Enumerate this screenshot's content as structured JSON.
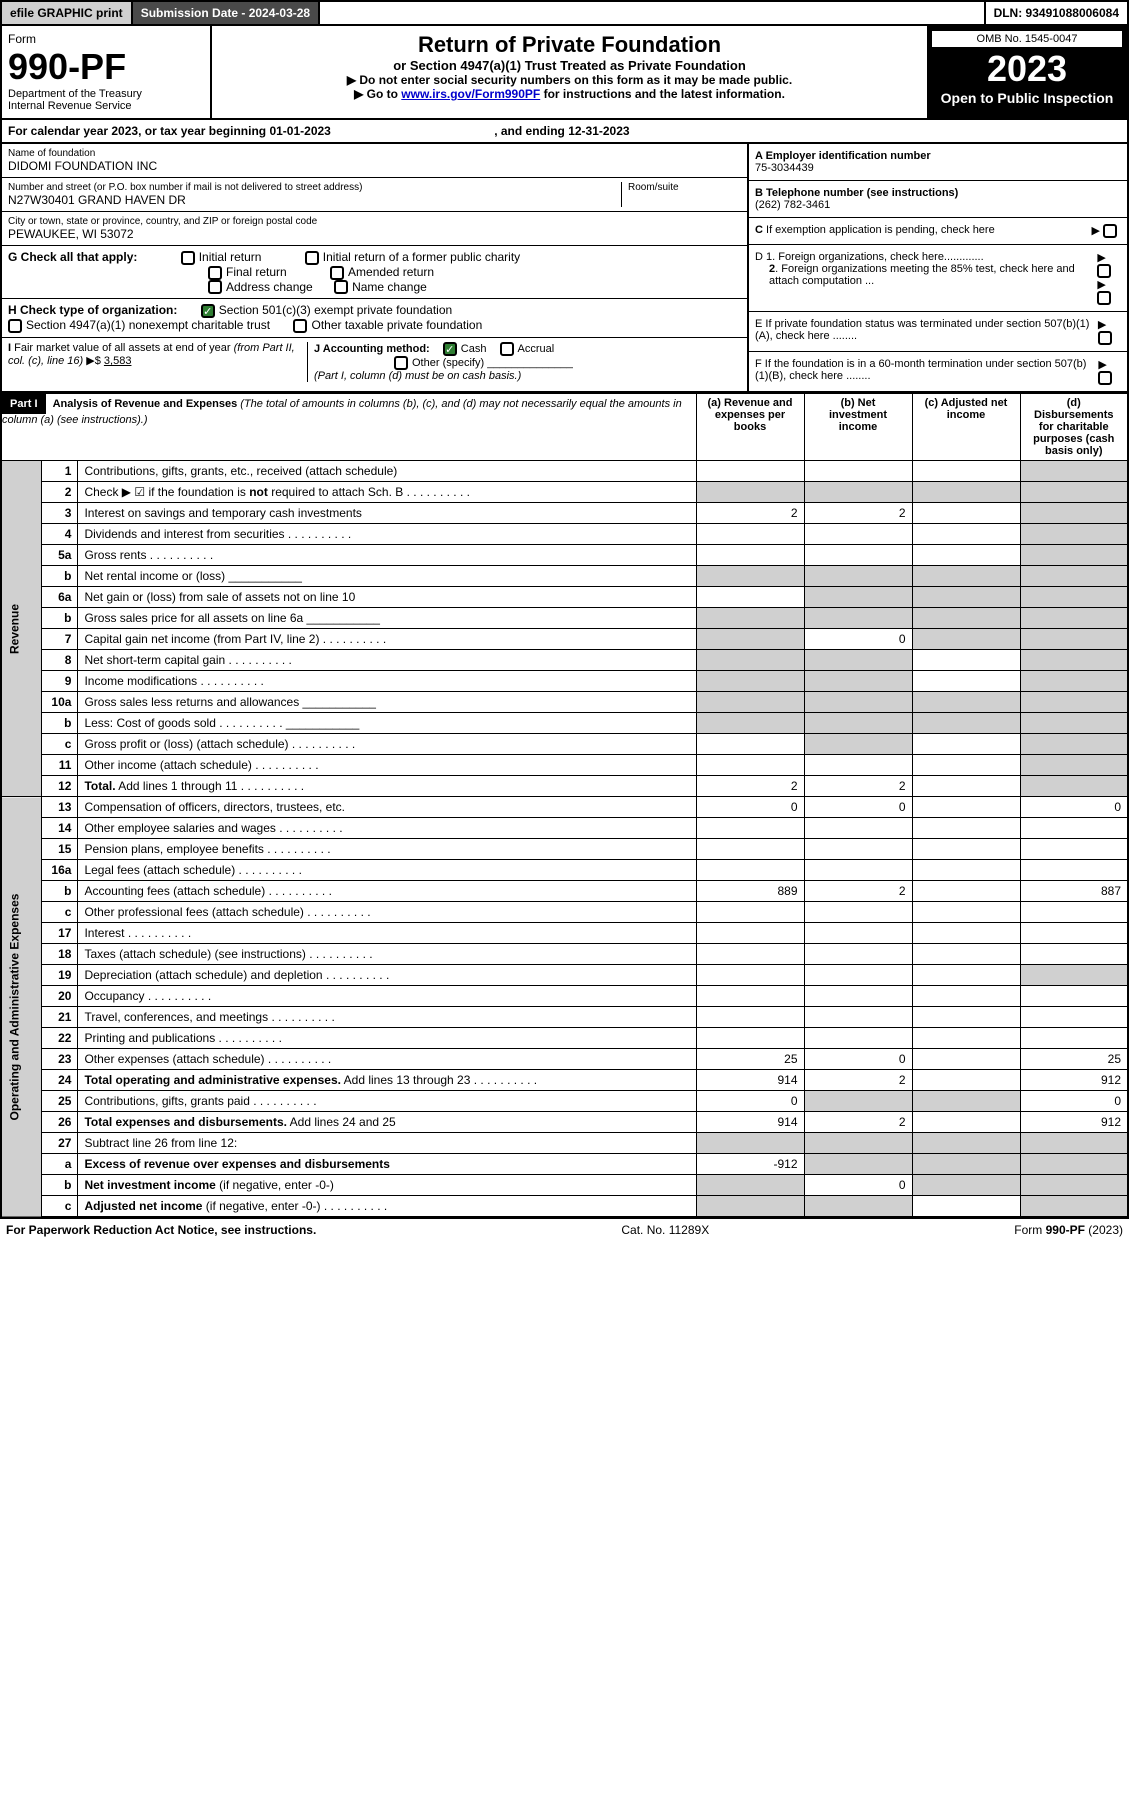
{
  "header": {
    "efile": "efile GRAPHIC print",
    "submission_label": "Submission Date - 2024-03-28",
    "dln": "DLN: 93491088006084"
  },
  "form": {
    "form_label": "Form",
    "form_no": "990-PF",
    "dept": "Department of the Treasury",
    "irs": "Internal Revenue Service",
    "title": "Return of Private Foundation",
    "subtitle": "or Section 4947(a)(1) Trust Treated as Private Foundation",
    "note1": "▶ Do not enter social security numbers on this form as it may be made public.",
    "note2_pre": "▶ Go to ",
    "note2_link": "www.irs.gov/Form990PF",
    "note2_post": " for instructions and the latest information.",
    "omb": "OMB No. 1545-0047",
    "year": "2023",
    "open": "Open to Public Inspection"
  },
  "cal": {
    "text_pre": "For calendar year 2023, or tax year beginning ",
    "begin": "01-01-2023",
    "text_mid": ", and ending ",
    "end": "12-31-2023"
  },
  "foundation": {
    "name_label": "Name of foundation",
    "name": "DIDOMI FOUNDATION INC",
    "addr_label": "Number and street (or P.O. box number if mail is not delivered to street address)",
    "addr": "N27W30401 GRAND HAVEN DR",
    "room_label": "Room/suite",
    "room": "",
    "city_label": "City or town, state or province, country, and ZIP or foreign postal code",
    "city": "PEWAUKEE, WI  53072"
  },
  "right_info": {
    "a_label": "A Employer identification number",
    "a_val": "75-3034439",
    "b_label": "B Telephone number (see instructions)",
    "b_val": "(262) 782-3461",
    "c_label": "C If exemption application is pending, check here",
    "d1_label": "D 1. Foreign organizations, check here.............",
    "d2_label": "2. Foreign organizations meeting the 85% test, check here and attach computation ...",
    "e_label": "E  If private foundation status was terminated under section 507(b)(1)(A), check here ........",
    "f_label": "F  If the foundation is in a 60-month termination under section 507(b)(1)(B), check here ........"
  },
  "g": {
    "label": "G Check all that apply:",
    "opts": [
      "Initial return",
      "Initial return of a former public charity",
      "Final return",
      "Amended return",
      "Address change",
      "Name change"
    ]
  },
  "h": {
    "label": "H Check type of organization:",
    "opt1": "Section 501(c)(3) exempt private foundation",
    "opt2": "Section 4947(a)(1) nonexempt charitable trust",
    "opt3": "Other taxable private foundation"
  },
  "i": {
    "label": "I Fair market value of all assets at end of year (from Part II, col. (c), line 16)",
    "arrow": "▶$",
    "val": "3,583"
  },
  "j": {
    "label": "J Accounting method:",
    "cash": "Cash",
    "accrual": "Accrual",
    "other": "Other (specify)",
    "note": "(Part I, column (d) must be on cash basis.)"
  },
  "part1": {
    "hdr": "Part I",
    "title": "Analysis of Revenue and Expenses",
    "title_note": "(The total of amounts in columns (b), (c), and (d) may not necessarily equal the amounts in column (a) (see instructions).)",
    "col_a": "(a)  Revenue and expenses per books",
    "col_b": "(b)  Net investment income",
    "col_c": "(c)  Adjusted net income",
    "col_d": "(d)  Disbursements for charitable purposes (cash basis only)"
  },
  "side_labels": {
    "revenue": "Revenue",
    "expenses": "Operating and Administrative Expenses"
  },
  "rows": [
    {
      "n": "1",
      "desc": "Contributions, gifts, grants, etc., received (attach schedule)",
      "a": "",
      "b": "",
      "c": "",
      "d": "grey"
    },
    {
      "n": "2",
      "desc": "Check ▶ ☑ if the foundation is <b>not</b> required to attach Sch. B",
      "a": "grey",
      "b": "grey",
      "c": "grey",
      "d": "grey",
      "dots": true
    },
    {
      "n": "3",
      "desc": "Interest on savings and temporary cash investments",
      "a": "2",
      "b": "2",
      "c": "",
      "d": "grey"
    },
    {
      "n": "4",
      "desc": "Dividends and interest from securities",
      "a": "",
      "b": "",
      "c": "",
      "d": "grey",
      "dots": true
    },
    {
      "n": "5a",
      "desc": "Gross rents",
      "a": "",
      "b": "",
      "c": "",
      "d": "grey",
      "dots": true
    },
    {
      "n": "b",
      "desc": "Net rental income or (loss)",
      "a": "grey",
      "b": "grey",
      "c": "grey",
      "d": "grey",
      "inline": true
    },
    {
      "n": "6a",
      "desc": "Net gain or (loss) from sale of assets not on line 10",
      "a": "",
      "b": "grey",
      "c": "grey",
      "d": "grey"
    },
    {
      "n": "b",
      "desc": "Gross sales price for all assets on line 6a",
      "a": "grey",
      "b": "grey",
      "c": "grey",
      "d": "grey",
      "inline": true
    },
    {
      "n": "7",
      "desc": "Capital gain net income (from Part IV, line 2)",
      "a": "grey",
      "b": "0",
      "c": "grey",
      "d": "grey",
      "dots": true
    },
    {
      "n": "8",
      "desc": "Net short-term capital gain",
      "a": "grey",
      "b": "grey",
      "c": "",
      "d": "grey",
      "dots": true
    },
    {
      "n": "9",
      "desc": "Income modifications",
      "a": "grey",
      "b": "grey",
      "c": "",
      "d": "grey",
      "dots": true
    },
    {
      "n": "10a",
      "desc": "Gross sales less returns and allowances",
      "a": "grey",
      "b": "grey",
      "c": "grey",
      "d": "grey",
      "inline": true
    },
    {
      "n": "b",
      "desc": "Less: Cost of goods sold",
      "a": "grey",
      "b": "grey",
      "c": "grey",
      "d": "grey",
      "inline": true,
      "dots": true
    },
    {
      "n": "c",
      "desc": "Gross profit or (loss) (attach schedule)",
      "a": "",
      "b": "grey",
      "c": "",
      "d": "grey",
      "dots": true
    },
    {
      "n": "11",
      "desc": "Other income (attach schedule)",
      "a": "",
      "b": "",
      "c": "",
      "d": "grey",
      "dots": true
    },
    {
      "n": "12",
      "desc": "<b>Total.</b> Add lines 1 through 11",
      "a": "2",
      "b": "2",
      "c": "",
      "d": "grey",
      "dots": true
    }
  ],
  "exp_rows": [
    {
      "n": "13",
      "desc": "Compensation of officers, directors, trustees, etc.",
      "a": "0",
      "b": "0",
      "c": "",
      "d": "0"
    },
    {
      "n": "14",
      "desc": "Other employee salaries and wages",
      "a": "",
      "b": "",
      "c": "",
      "d": "",
      "dots": true
    },
    {
      "n": "15",
      "desc": "Pension plans, employee benefits",
      "a": "",
      "b": "",
      "c": "",
      "d": "",
      "dots": true
    },
    {
      "n": "16a",
      "desc": "Legal fees (attach schedule)",
      "a": "",
      "b": "",
      "c": "",
      "d": "",
      "dots": true
    },
    {
      "n": "b",
      "desc": "Accounting fees (attach schedule)",
      "a": "889",
      "b": "2",
      "c": "",
      "d": "887",
      "dots": true
    },
    {
      "n": "c",
      "desc": "Other professional fees (attach schedule)",
      "a": "",
      "b": "",
      "c": "",
      "d": "",
      "dots": true
    },
    {
      "n": "17",
      "desc": "Interest",
      "a": "",
      "b": "",
      "c": "",
      "d": "",
      "dots": true
    },
    {
      "n": "18",
      "desc": "Taxes (attach schedule) (see instructions)",
      "a": "",
      "b": "",
      "c": "",
      "d": "",
      "dots": true
    },
    {
      "n": "19",
      "desc": "Depreciation (attach schedule) and depletion",
      "a": "",
      "b": "",
      "c": "",
      "d": "grey",
      "dots": true
    },
    {
      "n": "20",
      "desc": "Occupancy",
      "a": "",
      "b": "",
      "c": "",
      "d": "",
      "dots": true
    },
    {
      "n": "21",
      "desc": "Travel, conferences, and meetings",
      "a": "",
      "b": "",
      "c": "",
      "d": "",
      "dots": true
    },
    {
      "n": "22",
      "desc": "Printing and publications",
      "a": "",
      "b": "",
      "c": "",
      "d": "",
      "dots": true
    },
    {
      "n": "23",
      "desc": "Other expenses (attach schedule)",
      "a": "25",
      "b": "0",
      "c": "",
      "d": "25",
      "dots": true
    },
    {
      "n": "24",
      "desc": "<b>Total operating and administrative expenses.</b> Add lines 13 through 23",
      "a": "914",
      "b": "2",
      "c": "",
      "d": "912",
      "dots": true
    },
    {
      "n": "25",
      "desc": "Contributions, gifts, grants paid",
      "a": "0",
      "b": "grey",
      "c": "grey",
      "d": "0",
      "dots": true
    },
    {
      "n": "26",
      "desc": "<b>Total expenses and disbursements.</b> Add lines 24 and 25",
      "a": "914",
      "b": "2",
      "c": "",
      "d": "912"
    },
    {
      "n": "27",
      "desc": "Subtract line 26 from line 12:",
      "a": "grey",
      "b": "grey",
      "c": "grey",
      "d": "grey"
    },
    {
      "n": "a",
      "desc": "<b>Excess of revenue over expenses and disbursements</b>",
      "a": "-912",
      "b": "grey",
      "c": "grey",
      "d": "grey"
    },
    {
      "n": "b",
      "desc": "<b>Net investment income</b> (if negative, enter -0-)",
      "a": "grey",
      "b": "0",
      "c": "grey",
      "d": "grey"
    },
    {
      "n": "c",
      "desc": "<b>Adjusted net income</b> (if negative, enter -0-)",
      "a": "grey",
      "b": "grey",
      "c": "",
      "d": "grey",
      "dots": true
    }
  ],
  "footer": {
    "left": "For Paperwork Reduction Act Notice, see instructions.",
    "mid": "Cat. No. 11289X",
    "right": "Form 990-PF (2023)"
  }
}
